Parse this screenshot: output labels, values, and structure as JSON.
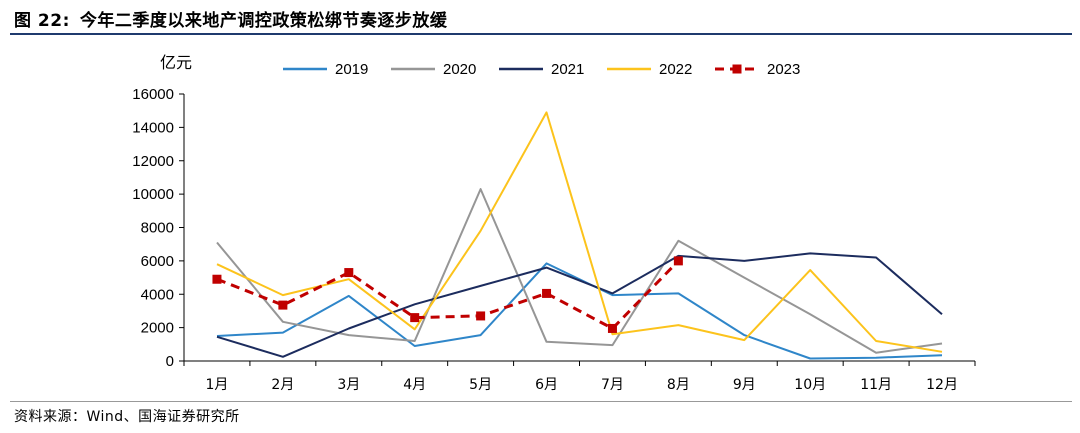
{
  "header": {
    "figure_label": "图 22:",
    "title": "今年二季度以来地产调控政策松绑节奏逐步放缓"
  },
  "footer": {
    "source": "资料来源：Wind、国海证券研究所"
  },
  "chart_data": {
    "type": "line",
    "title": "今年二季度以来地产调控政策松绑节奏逐步放缓",
    "ylabel": "亿元",
    "xlabel": "",
    "ylim": [
      0,
      16000
    ],
    "yticks": [
      0,
      2000,
      4000,
      6000,
      8000,
      10000,
      12000,
      14000,
      16000
    ],
    "categories": [
      "1月",
      "2月",
      "3月",
      "4月",
      "5月",
      "6月",
      "7月",
      "8月",
      "9月",
      "10月",
      "11月",
      "12月"
    ],
    "legend_position": "top",
    "grid": false,
    "series": [
      {
        "name": "2019",
        "color": "#2f86c9",
        "style": "solid",
        "marker": "none",
        "values": [
          1500,
          1700,
          3900,
          900,
          1550,
          5850,
          3950,
          4050,
          1550,
          150,
          200,
          350
        ]
      },
      {
        "name": "2020",
        "color": "#969696",
        "style": "solid",
        "marker": "none",
        "values": [
          7100,
          2350,
          1550,
          1200,
          10300,
          1150,
          950,
          7200,
          5000,
          2800,
          500,
          1050
        ]
      },
      {
        "name": "2021",
        "color": "#1c2c5e",
        "style": "solid",
        "marker": "none",
        "values": [
          1450,
          250,
          1950,
          3400,
          4500,
          5600,
          4050,
          6300,
          6000,
          6450,
          6200,
          2800
        ]
      },
      {
        "name": "2022",
        "color": "#fcc31c",
        "style": "solid",
        "marker": "none",
        "values": [
          5800,
          3950,
          4900,
          1900,
          7800,
          14900,
          1600,
          2150,
          1250,
          5450,
          1200,
          550
        ]
      },
      {
        "name": "2023",
        "color": "#c00000",
        "style": "dashed",
        "marker": "square",
        "values": [
          4900,
          3350,
          5300,
          2600,
          2700,
          4050,
          1950,
          6000,
          null,
          null,
          null,
          null
        ]
      }
    ]
  }
}
